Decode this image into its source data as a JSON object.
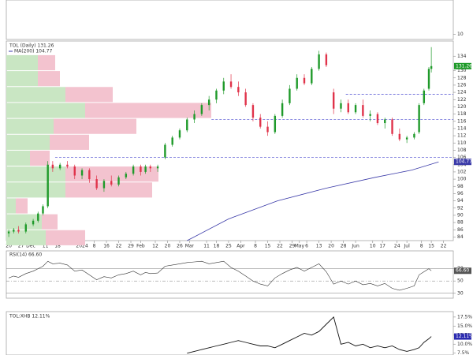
{
  "chart_data": {
    "type": "candlestick",
    "legend": "TOL (Daily) 131.26",
    "up_color": "#1f9a2a",
    "down_color": "#e0334a",
    "xlim": [
      -1,
      182
    ],
    "xticks": [
      {
        "value": 0,
        "label": "20"
      },
      {
        "value": 5,
        "label": "27"
      },
      {
        "value": 9,
        "label": "Dec"
      },
      {
        "value": 15,
        "label": "11"
      },
      {
        "value": 20,
        "label": "18"
      },
      {
        "value": 30,
        "label": "2024"
      },
      {
        "value": 35,
        "label": "8"
      },
      {
        "value": 40,
        "label": "16"
      },
      {
        "value": 45,
        "label": "22"
      },
      {
        "value": 50,
        "label": "29"
      },
      {
        "value": 54,
        "label": "Feb"
      },
      {
        "value": 60,
        "label": "12"
      },
      {
        "value": 65,
        "label": "20"
      },
      {
        "value": 70,
        "label": "26"
      },
      {
        "value": 74,
        "label": "Mar"
      },
      {
        "value": 81,
        "label": "11"
      },
      {
        "value": 85,
        "label": "18"
      },
      {
        "value": 90,
        "label": "25"
      },
      {
        "value": 95,
        "label": "Apr"
      },
      {
        "value": 101,
        "label": "8"
      },
      {
        "value": 106,
        "label": "15"
      },
      {
        "value": 111,
        "label": "22"
      },
      {
        "value": 116,
        "label": "29"
      },
      {
        "value": 119,
        "label": "May"
      },
      {
        "value": 122,
        "label": "6"
      },
      {
        "value": 127,
        "label": "13"
      },
      {
        "value": 132,
        "label": "20"
      },
      {
        "value": 137,
        "label": "28"
      },
      {
        "value": 142,
        "label": "Jun"
      },
      {
        "value": 149,
        "label": "10"
      },
      {
        "value": 153,
        "label": "17"
      },
      {
        "value": 159,
        "label": "24"
      },
      {
        "value": 163,
        "label": "Jul"
      },
      {
        "value": 169,
        "label": "8"
      },
      {
        "value": 173,
        "label": "15"
      },
      {
        "value": 178,
        "label": "22"
      }
    ],
    "ylim": [
      83,
      138.2
    ],
    "yticks": [
      84,
      86,
      88,
      90,
      92,
      94,
      96,
      98,
      100,
      102,
      104,
      106,
      108,
      110,
      112,
      114,
      116,
      118,
      120,
      122,
      124,
      126,
      128,
      130,
      134
    ],
    "candles": {
      "x": [
        0,
        2,
        4,
        7,
        10,
        12,
        14,
        16,
        18,
        21,
        24,
        27,
        30,
        33,
        36,
        39,
        42,
        45,
        48,
        51,
        54,
        56,
        58,
        61,
        64,
        67,
        70,
        73,
        76,
        79,
        82,
        85,
        88,
        91,
        94,
        97,
        100,
        103,
        106,
        109,
        112,
        115,
        118,
        121,
        124,
        127,
        130,
        133,
        136,
        139,
        142,
        145,
        148,
        151,
        154,
        157,
        160,
        163,
        166,
        168,
        170,
        172,
        173
      ],
      "open": [
        85,
        85.5,
        86,
        85.5,
        87.5,
        88.5,
        90.5,
        92.5,
        104,
        103,
        104,
        103.5,
        101,
        102.5,
        100,
        97.5,
        99.5,
        98.5,
        100.5,
        101.5,
        103.5,
        102,
        103.5,
        103,
        106,
        109.5,
        111.5,
        113.5,
        116.5,
        118,
        120.5,
        122,
        124.5,
        127,
        125.5,
        124,
        120.5,
        117,
        114.5,
        113,
        117.5,
        121,
        125,
        128,
        126.5,
        130.5,
        134.5,
        124,
        119.5,
        121,
        118.5,
        120.5,
        117.5,
        118,
        115.5,
        116.5,
        112.5,
        111,
        111.5,
        113,
        121,
        125,
        130.5
      ],
      "high": [
        86,
        86.5,
        87,
        88,
        89,
        91,
        93,
        105,
        105,
        104.5,
        105,
        104,
        103,
        103,
        101,
        100,
        101,
        101,
        102,
        104,
        104,
        104,
        104,
        104,
        110,
        112,
        114,
        117,
        119,
        121,
        123,
        125,
        128,
        129,
        127,
        125,
        121,
        118,
        116,
        118,
        122,
        126,
        129,
        129,
        131,
        135.5,
        135,
        125,
        122,
        122,
        121,
        122,
        119,
        118.5,
        117,
        117,
        114,
        112,
        113,
        121,
        125,
        131,
        136.5
      ],
      "low": [
        84,
        85,
        85,
        85,
        87,
        88,
        90,
        92,
        102,
        102.5,
        103,
        100,
        100,
        99,
        97,
        96.5,
        98,
        98,
        100,
        101,
        101,
        101.5,
        102,
        102,
        105.5,
        109,
        111,
        113,
        115.5,
        117.5,
        119,
        121,
        123.5,
        125,
        123,
        120,
        116,
        114,
        112,
        112.5,
        117,
        120.5,
        124.5,
        126,
        126,
        130,
        131,
        118,
        118.5,
        118,
        118,
        117,
        116,
        115,
        114,
        112,
        110.5,
        110,
        111,
        112.5,
        120.5,
        124.5,
        129.5
      ],
      "close": [
        85.5,
        86,
        85.5,
        87.5,
        88.5,
        90.5,
        92.5,
        104,
        103,
        104,
        103.5,
        101,
        102.5,
        100,
        97.5,
        99.5,
        98.5,
        100.5,
        101.5,
        103.5,
        102,
        103.5,
        103,
        103.5,
        109.5,
        111.5,
        113.5,
        116.5,
        118,
        120.5,
        122,
        124.5,
        127,
        125.5,
        124,
        120.5,
        117,
        114.5,
        113,
        117.5,
        121,
        125,
        128,
        126.5,
        130.5,
        134.5,
        131.5,
        119.5,
        121,
        118.5,
        120.5,
        117.5,
        118,
        115.5,
        116.5,
        112.5,
        111,
        111.5,
        112.5,
        120.5,
        124.5,
        130.5,
        131.26
      ]
    },
    "ma": {
      "name": "MA(200) 104.77",
      "color": "#3a3aa8",
      "x": [
        73,
        90,
        110,
        130,
        150,
        165,
        176
      ],
      "values": [
        83,
        89,
        94,
        97.5,
        100.5,
        102.5,
        104.77
      ]
    },
    "levels": [
      {
        "value": 106,
        "from": 19
      },
      {
        "value": 116.5,
        "from": 83
      },
      {
        "value": 123.5,
        "from": 138
      }
    ],
    "level_color": "#4a4ad0",
    "volume_by_price": {
      "bins": [
        81.6,
        86,
        90.4,
        94.8,
        99.2,
        103.6,
        108,
        112.4,
        116.8,
        121.2,
        125.6,
        130,
        134.4
      ],
      "up": [
        50,
        45,
        12,
        75,
        75,
        30,
        55,
        60,
        100,
        75,
        40,
        40
      ],
      "down": [
        50,
        20,
        15,
        110,
        118,
        25,
        50,
        105,
        160,
        60,
        28,
        22
      ],
      "up_color": "#c9e6c3",
      "down_color": "#f3c3cf"
    },
    "rsi": {
      "name": "RSI(14) 66.60",
      "ylim": [
        22,
        99
      ],
      "yticks": [
        30,
        50,
        70
      ],
      "last_label": "66.60",
      "values": [
        55,
        58,
        56,
        62,
        66,
        70,
        74,
        82,
        78,
        79,
        76,
        66,
        68,
        60,
        52,
        57,
        55,
        60,
        62,
        66,
        60,
        64,
        62,
        63,
        74,
        76,
        78,
        80,
        81,
        82,
        78,
        80,
        82,
        72,
        66,
        58,
        50,
        45,
        42,
        55,
        62,
        68,
        72,
        66,
        72,
        78,
        65,
        45,
        50,
        45,
        50,
        44,
        46,
        42,
        46,
        38,
        35,
        38,
        42,
        60,
        65,
        70,
        66.6
      ]
    },
    "ratio": {
      "name": "TOL:XHB 12.11%",
      "ylim": [
        7,
        19
      ],
      "last_label": "12.11%",
      "yticks": [
        {
          "value": 7.5,
          "label": "7.5%"
        },
        {
          "value": 10,
          "label": "10.0%"
        },
        {
          "value": 12.5,
          "label": "12.5%"
        },
        {
          "value": 15,
          "label": "15.0%"
        },
        {
          "value": 17.5,
          "label": "17.5%"
        }
      ],
      "values": [
        null,
        null,
        null,
        null,
        null,
        null,
        null,
        null,
        null,
        null,
        null,
        null,
        null,
        null,
        null,
        null,
        null,
        null,
        null,
        null,
        null,
        null,
        null,
        null,
        null,
        null,
        null,
        7.5,
        8,
        8.5,
        9,
        9.5,
        10,
        10.5,
        11,
        10.5,
        10,
        9.5,
        9.5,
        9,
        10,
        11,
        12,
        13,
        12.5,
        13.5,
        15.5,
        17.5,
        10,
        10.5,
        9.5,
        10,
        9,
        9.5,
        9,
        9.5,
        8.5,
        8,
        8.5,
        9,
        10.5,
        11.5,
        12.11
      ]
    },
    "top_panel": {
      "ylim": [
        7,
        30
      ],
      "yticks": [
        10
      ]
    }
  }
}
